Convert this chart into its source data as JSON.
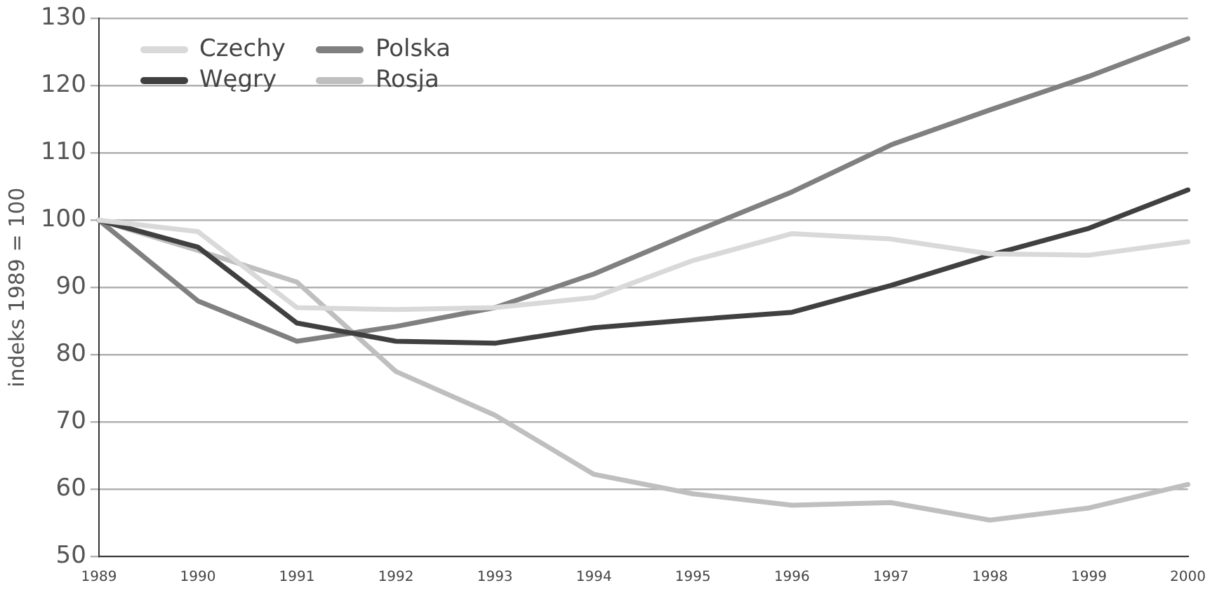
{
  "chart_data": {
    "type": "line",
    "ylabel": "indeks 1989 = 100",
    "categories": [
      "1989",
      "1990",
      "1991",
      "1992",
      "1993",
      "1994",
      "1995",
      "1996",
      "1997",
      "1998",
      "1999",
      "2000"
    ],
    "series": [
      {
        "name": "Czechy",
        "color": "#d9d9d9",
        "values": [
          100,
          98.3,
          87,
          86.7,
          87,
          88.5,
          94,
          98,
          97.2,
          95,
          94.8,
          96.8
        ]
      },
      {
        "name": "Węgry",
        "color": "#404040",
        "values": [
          100,
          96,
          84.7,
          82,
          81.7,
          84,
          85.2,
          86.3,
          90.3,
          94.8,
          98.8,
          104.5
        ]
      },
      {
        "name": "Polska",
        "color": "#808080",
        "values": [
          100,
          88,
          82,
          84.2,
          87,
          92,
          98.2,
          104.2,
          111.2,
          116.4,
          121.4,
          127
        ]
      },
      {
        "name": "Rosja",
        "color": "#bfbfbf",
        "values": [
          100,
          95.5,
          90.8,
          77.5,
          71,
          62.2,
          59.3,
          57.6,
          58,
          55.4,
          57.2,
          60.7
        ]
      }
    ],
    "ylim": [
      50,
      130
    ],
    "yticks": [
      50,
      60,
      70,
      80,
      90,
      100,
      110,
      120,
      130
    ],
    "grid": "y",
    "legend": "top left",
    "marker": "none",
    "line_style": "solid"
  }
}
